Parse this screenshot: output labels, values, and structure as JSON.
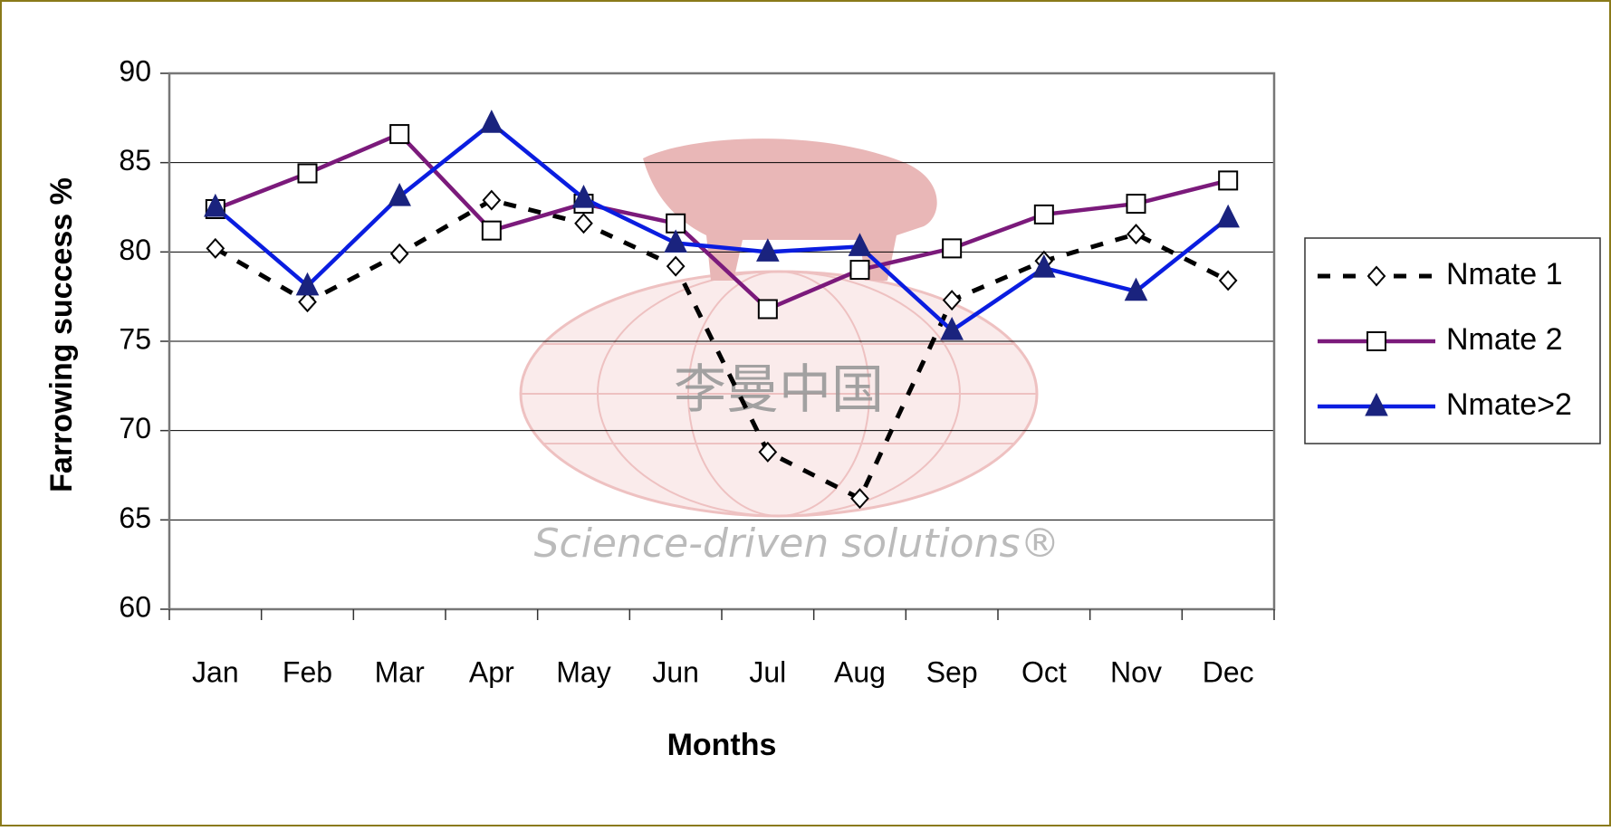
{
  "chart_data": {
    "type": "line",
    "y_label": "Farrowing success %",
    "x_label": "Months",
    "categories": [
      "Jan",
      "Feb",
      "Mar",
      "Apr",
      "May",
      "Jun",
      "Jul",
      "Aug",
      "Sep",
      "Oct",
      "Nov",
      "Dec"
    ],
    "series": [
      {
        "name": "Nmate 1",
        "color": "#000000",
        "marker": "diamond",
        "dashed": true,
        "values": [
          80.2,
          77.2,
          79.9,
          82.9,
          81.6,
          79.2,
          68.8,
          66.2,
          77.3,
          79.5,
          81.0,
          78.4
        ]
      },
      {
        "name": "Nmate 2",
        "color": "#7b1a7b",
        "marker": "square",
        "dashed": false,
        "values": [
          82.4,
          84.4,
          86.6,
          81.2,
          82.7,
          81.6,
          76.8,
          79.0,
          80.2,
          82.1,
          82.7,
          84.0
        ]
      },
      {
        "name": "Nmate>2",
        "color": "#0a1de0",
        "marker": "triangle",
        "dashed": false,
        "values": [
          82.5,
          78.1,
          83.1,
          87.2,
          83.0,
          80.5,
          80.0,
          80.3,
          75.6,
          79.1,
          77.8,
          81.9
        ]
      }
    ],
    "ylim": [
      60,
      90
    ],
    "yticks": [
      60,
      65,
      70,
      75,
      80,
      85,
      90
    ],
    "grid": true,
    "legend": "right"
  },
  "watermark": {
    "logo_text": "李曼中国",
    "slogan": "Science-driven solutions®"
  }
}
